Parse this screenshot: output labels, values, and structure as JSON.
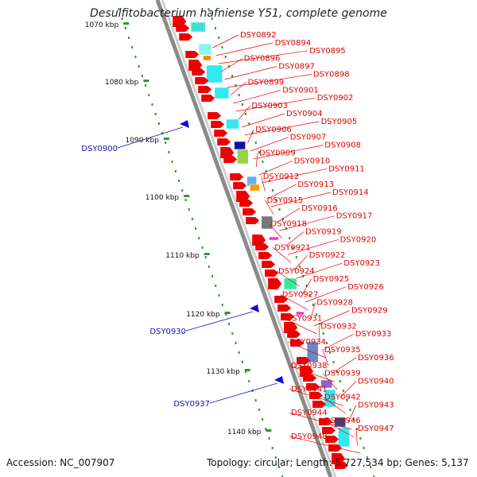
{
  "title": "Desulfitobacterium hafniense Y51, complete genome",
  "footer": {
    "accession": "Accession: NC_007907",
    "summary": "Topology: circular; Length: 5,727,534 bp; Genes: 5,137"
  },
  "colors": {
    "forward": "#ee0000",
    "reverse": "#1010cc",
    "backbone": "#8a8a8a",
    "ticks_green": "#2a9a2a"
  },
  "scale_labels": [
    "1070 kbp",
    "1080 kbp",
    "1090 kbp",
    "1100 kbp",
    "1110 kbp",
    "1120 kbp",
    "1130 kbp",
    "1140 kbp"
  ],
  "reverse_genes": [
    "DSY0900",
    "DSY0930",
    "DSY0937"
  ],
  "forward_genes": [
    "DSY0892",
    "DSY0894",
    "DSY0895",
    "DSY0896",
    "DSY0897",
    "DSY0898",
    "DSY0899",
    "DSY0901",
    "DSY0902",
    "DSY0903",
    "DSY0904",
    "DSY0905",
    "DSY0906",
    "DSY0907",
    "DSY0908",
    "DSY0909",
    "DSY0910",
    "DSY0911",
    "DSY0912",
    "DSY0913",
    "DSY0914",
    "DSY0915",
    "DSY0916",
    "DSY0917",
    "DSY0918",
    "DSY0919",
    "DSY0920",
    "DSY0921",
    "DSY0922",
    "DSY0923",
    "DSY0924",
    "DSY0925",
    "DSY0926",
    "DSY0927",
    "DSY0928",
    "DSY0929",
    "DSY0931",
    "DSY0932",
    "DSY0933",
    "DSY0934",
    "DSY0935",
    "DSY0936",
    "DSY0938",
    "DSY0939",
    "DSY0940",
    "DSY0941",
    "DSY0942",
    "DSY0943",
    "DSY0944",
    "DSY0946",
    "DSY0947",
    "DSY0948"
  ]
}
